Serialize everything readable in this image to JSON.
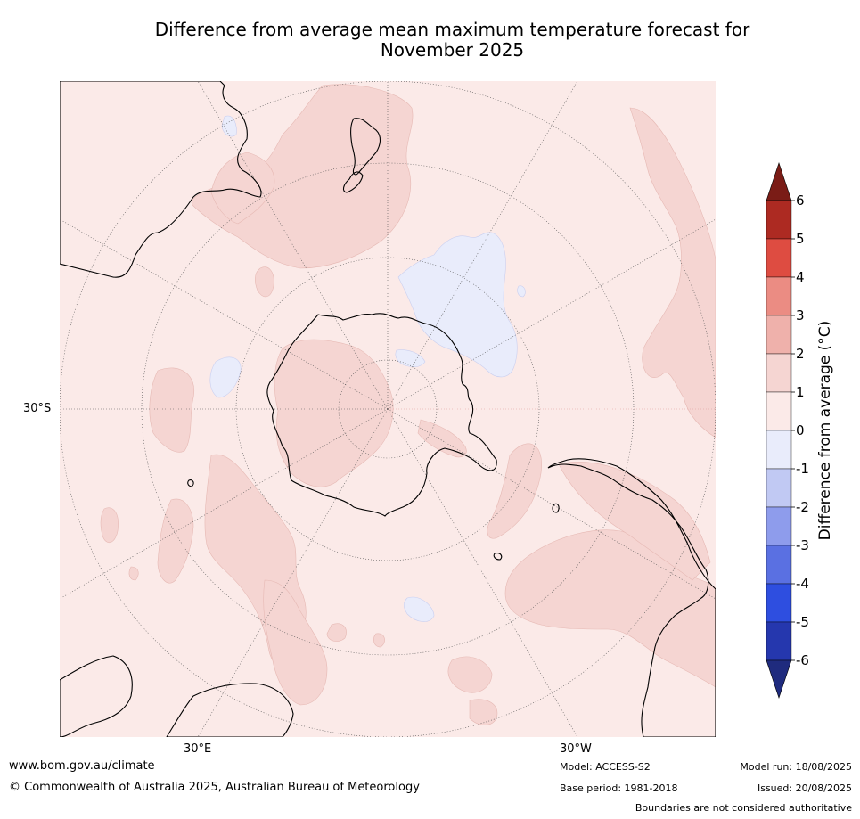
{
  "title": {
    "line1": "Difference from average mean maximum temperature forecast for",
    "line2": "November 2025"
  },
  "map": {
    "projection": "south polar stereographic",
    "lat_label": "30°S",
    "lon_labels": [
      "30°E",
      "30°W"
    ],
    "background_color": "#fbeae8"
  },
  "colorbar": {
    "label": "Difference from average (°C)",
    "label_unit_note": "(°C)",
    "ticks": [
      "6",
      "5",
      "4",
      "3",
      "2",
      "1",
      "0",
      "-1",
      "-2",
      "-3",
      "-4",
      "-5",
      "-6"
    ],
    "bins": [
      {
        "range": "5 to 6",
        "color": "#ad2a22"
      },
      {
        "range": "4 to 5",
        "color": "#de4c41"
      },
      {
        "range": "3 to 4",
        "color": "#eb8c83"
      },
      {
        "range": "2 to 3",
        "color": "#efb1ab"
      },
      {
        "range": "1 to 2",
        "color": "#f5d5d2"
      },
      {
        "range": "0 to 1",
        "color": "#fbeae8"
      },
      {
        "range": "-1 to 0",
        "color": "#e9ecfb"
      },
      {
        "range": "-2 to -1",
        "color": "#c1c9f3"
      },
      {
        "range": "-3 to -2",
        "color": "#8e9cec"
      },
      {
        "range": "-4 to -3",
        "color": "#5a70e2"
      },
      {
        "range": "-5 to -4",
        "color": "#2e4ee0"
      },
      {
        "range": "-6 to -5",
        "color": "#2537ae"
      }
    ],
    "over_color": "#7a1c16",
    "under_color": "#1f2b7e"
  },
  "footer": {
    "website": "www.bom.gov.au/climate",
    "copyright": "© Commonwealth of Australia 2025, Australian Bureau of Meteorology",
    "model": "Model: ACCESS-S2",
    "base_period": "Base period: 1981-2018",
    "model_run": "Model run: 18/08/2025",
    "issued": "Issued: 20/08/2025",
    "boundaries": "Boundaries are not considered authoritative"
  }
}
